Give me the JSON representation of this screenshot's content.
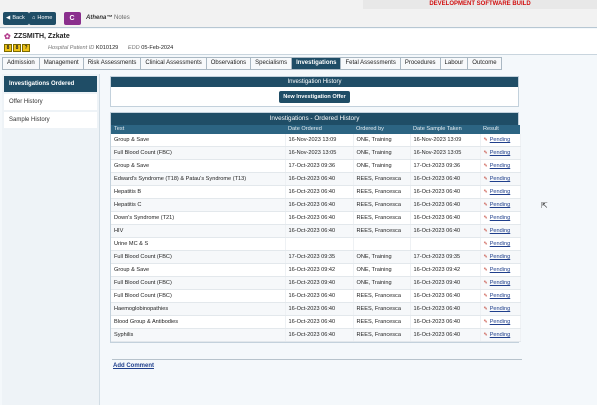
{
  "banner": "DEVELOPMENT SOFTWARE BUILD",
  "nav": {
    "back_label": "Back",
    "home_label": "Home",
    "c_label": "C",
    "app_name": "Athena™",
    "app_suffix": "Notes"
  },
  "patient": {
    "name": "ZZSMITH, Zzkate",
    "alerts": [
      "8",
      "8",
      "?"
    ],
    "hospital_id_label": "Hospital Patient ID",
    "hospital_id": "K010129",
    "edd_label": "EDD",
    "edd": "05-Feb-2024"
  },
  "tabs": [
    "Admission",
    "Management",
    "Risk Assessments",
    "Clinical Assessments",
    "Observations",
    "Specialisms",
    "Investigations",
    "Fetal Assessments",
    "Procedures",
    "Labour",
    "Outcome"
  ],
  "sidebar": {
    "items": [
      "Investigations Ordered",
      "Offer History",
      "Sample History"
    ]
  },
  "history": {
    "title": "Investigation History",
    "offer_button": "New Investigation Offer"
  },
  "ordered": {
    "title": "Investigations - Ordered History",
    "columns": [
      "Test",
      "Date Ordered",
      "Ordered by",
      "Date Sample Taken",
      "Result"
    ],
    "rows": [
      [
        "Group & Save",
        "16-Nov-2023 13:09",
        "ONE, Training",
        "16-Nov-2023 13:09",
        "Pending"
      ],
      [
        "Full Blood Count (FBC)",
        "16-Nov-2023 13:05",
        "ONE, Training",
        "16-Nov-2023 13:05",
        "Pending"
      ],
      [
        "Group & Save",
        "17-Oct-2023 09:36",
        "ONE, Training",
        "17-Oct-2023 09:36",
        "Pending"
      ],
      [
        "Edward's Syndrome (T18) & Patau's Syndrome (T13)",
        "16-Oct-2023 06:40",
        "REES, Francesca",
        "16-Oct-2023 06:40",
        "Pending"
      ],
      [
        "Hepatitis B",
        "16-Oct-2023 06:40",
        "REES, Francesca",
        "16-Oct-2023 06:40",
        "Pending"
      ],
      [
        "Hepatitis C",
        "16-Oct-2023 06:40",
        "REES, Francesca",
        "16-Oct-2023 06:40",
        "Pending"
      ],
      [
        "Down's Syndrome (T21)",
        "16-Oct-2023 06:40",
        "REES, Francesca",
        "16-Oct-2023 06:40",
        "Pending"
      ],
      [
        "HIV",
        "16-Oct-2023 06:40",
        "REES, Francesca",
        "16-Oct-2023 06:40",
        "Pending"
      ],
      [
        "Urine MC & S",
        "",
        "",
        "",
        "Pending"
      ],
      [
        "Full Blood Count (FBC)",
        "17-Oct-2023 09:35",
        "ONE, Training",
        "17-Oct-2023 09:35",
        "Pending"
      ],
      [
        "Group & Save",
        "16-Oct-2023 09:42",
        "ONE, Training",
        "16-Oct-2023 09:42",
        "Pending"
      ],
      [
        "Full Blood Count (FBC)",
        "16-Oct-2023 09:40",
        "ONE, Training",
        "16-Oct-2023 09:40",
        "Pending"
      ],
      [
        "Full Blood Count (FBC)",
        "16-Oct-2023 06:40",
        "REES, Francesca",
        "16-Oct-2023 06:40",
        "Pending"
      ],
      [
        "Haemoglobinopathies",
        "16-Oct-2023 06:40",
        "REES, Francesca",
        "16-Oct-2023 06:40",
        "Pending"
      ],
      [
        "Blood Group & Antibodies",
        "16-Oct-2023 06:40",
        "REES, Francesca",
        "16-Oct-2023 06:40",
        "Pending"
      ],
      [
        "Syphilis",
        "16-Oct-2023 06:40",
        "REES, Francesca",
        "16-Oct-2023 06:40",
        "Pending"
      ]
    ]
  },
  "add_comment": "Add Comment",
  "colors": {
    "primary": "#1f4d66",
    "banner_text": "#d10f0f",
    "link": "#1f3f8c",
    "c_button": "#8a2f8d"
  }
}
